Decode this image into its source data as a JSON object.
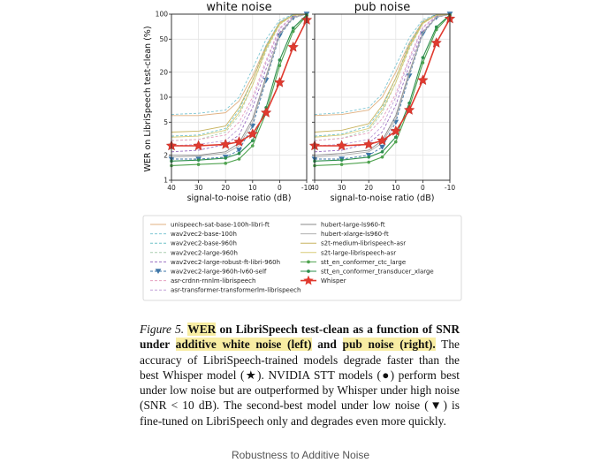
{
  "chart_data": [
    {
      "type": "line",
      "title": "white noise",
      "xlabel": "signal-to-noise ratio (dB)",
      "ylabel": "WER on LibriSpeech test-clean (%)",
      "x": [
        40,
        30,
        20,
        15,
        10,
        5,
        0,
        -5,
        -10
      ],
      "xticks": [
        "40",
        "30",
        "20",
        "10",
        "0",
        "-10"
      ],
      "yticks": [
        "1",
        "2",
        "5",
        "10",
        "20",
        "50",
        "100"
      ],
      "xlim": [
        40,
        -10
      ],
      "ylim": [
        1,
        100
      ],
      "yscale": "log",
      "series": [
        {
          "name": "unispeech-sat-base-100h-libri-ft",
          "color": "#e0b080",
          "values": [
            6,
            6,
            6.5,
            9,
            18,
            42,
            80,
            98,
            100
          ]
        },
        {
          "name": "wav2vec2-base-100h",
          "color": "#7fc7d4",
          "values": [
            6.2,
            6.4,
            7,
            10,
            22,
            50,
            85,
            99,
            100
          ]
        },
        {
          "name": "wav2vec2-base-960h",
          "color": "#6fc2c8",
          "values": [
            3.4,
            3.5,
            4.2,
            7,
            16,
            42,
            80,
            98,
            100
          ]
        },
        {
          "name": "wav2vec2-large-960h",
          "color": "#aacdb0",
          "values": [
            3.0,
            3.1,
            3.8,
            6,
            14,
            36,
            75,
            97,
            100
          ]
        },
        {
          "name": "wav2vec2-large-robust-ft-libri-960h",
          "color": "#9a6fc0",
          "values": [
            2.2,
            2.3,
            2.7,
            3.5,
            7.5,
            22,
            60,
            92,
            100
          ]
        },
        {
          "name": "wav2vec2-large-960h-lv60-self",
          "color": "#3e76a8",
          "values": [
            1.8,
            1.8,
            1.9,
            2.3,
            4.5,
            16,
            55,
            90,
            100
          ]
        },
        {
          "name": "asr-crdnn-rnnlm-librispeech",
          "color": "#e6a0c0",
          "values": [
            3.0,
            3.1,
            3.5,
            5,
            10,
            28,
            68,
            95,
            100
          ]
        },
        {
          "name": "asr-transformer-transformerlm-librispeech",
          "color": "#c0a0d8",
          "values": [
            2.6,
            2.7,
            3.0,
            4.2,
            9,
            26,
            66,
            94,
            100
          ]
        },
        {
          "name": "hubert-large-ls960-ft",
          "color": "#8a8a8a",
          "values": [
            2.0,
            2.0,
            2.2,
            2.8,
            5.5,
            18,
            58,
            91,
            100
          ]
        },
        {
          "name": "hubert-xlarge-ls960-ft",
          "color": "#b0b0b0",
          "values": [
            1.9,
            1.95,
            2.1,
            2.6,
            5,
            17,
            57,
            91,
            100
          ]
        },
        {
          "name": "s2t-medium-librispeech-asr",
          "color": "#c8b460",
          "values": [
            3.8,
            3.9,
            4.5,
            7.5,
            16,
            40,
            78,
            97,
            100
          ]
        },
        {
          "name": "s2t-large-librispeech-asr",
          "color": "#d8cc78",
          "values": [
            3.3,
            3.4,
            4.0,
            6.5,
            14,
            38,
            76,
            97,
            100
          ]
        },
        {
          "name": "stt_en_conformer_ctc_large",
          "color": "#4fa34f",
          "values": [
            1.5,
            1.55,
            1.6,
            1.8,
            2.6,
            6.5,
            24,
            62,
            96
          ]
        },
        {
          "name": "stt_en_conformer_transducer_xlarge",
          "color": "#2e8f4e",
          "values": [
            1.7,
            1.75,
            1.85,
            2.1,
            3.0,
            7.5,
            28,
            68,
            98
          ]
        },
        {
          "name": "Whisper",
          "color": "#e03a2f",
          "values": [
            2.6,
            2.6,
            2.7,
            2.9,
            3.6,
            6.5,
            15,
            40,
            85
          ]
        }
      ]
    },
    {
      "type": "line",
      "title": "pub noise",
      "xlabel": "signal-to-noise ratio (dB)",
      "ylabel": "",
      "x": [
        40,
        30,
        20,
        15,
        10,
        5,
        0,
        -5,
        -10
      ],
      "xticks": [
        "40",
        "30",
        "20",
        "10",
        "0",
        "-10"
      ],
      "yticks": [
        "1",
        "2",
        "5",
        "10",
        "20",
        "50",
        "100"
      ],
      "xlim": [
        40,
        -10
      ],
      "ylim": [
        1,
        100
      ],
      "yscale": "log",
      "series": [
        {
          "name": "unispeech-sat-base-100h-libri-ft",
          "color": "#e0b080",
          "values": [
            6,
            6.2,
            7,
            10,
            20,
            45,
            82,
            98,
            100
          ]
        },
        {
          "name": "wav2vec2-base-100h",
          "color": "#7fc7d4",
          "values": [
            6.2,
            6.5,
            7.5,
            11,
            24,
            52,
            86,
            99,
            100
          ]
        },
        {
          "name": "wav2vec2-base-960h",
          "color": "#6fc2c8",
          "values": [
            3.4,
            3.6,
            4.5,
            7.5,
            17,
            44,
            81,
            98,
            100
          ]
        },
        {
          "name": "wav2vec2-large-960h",
          "color": "#aacdb0",
          "values": [
            3.0,
            3.2,
            4.0,
            6.5,
            15,
            38,
            77,
            97,
            100
          ]
        },
        {
          "name": "wav2vec2-large-robust-ft-libri-960h",
          "color": "#9a6fc0",
          "values": [
            2.2,
            2.3,
            2.8,
            3.8,
            8,
            24,
            62,
            93,
            100
          ]
        },
        {
          "name": "wav2vec2-large-960h-lv60-self",
          "color": "#3e76a8",
          "values": [
            1.8,
            1.8,
            2.0,
            2.5,
            5,
            18,
            58,
            91,
            100
          ]
        },
        {
          "name": "asr-crdnn-rnnlm-librispeech",
          "color": "#e6a0c0",
          "values": [
            3.0,
            3.2,
            3.7,
            5.5,
            11,
            30,
            70,
            95,
            100
          ]
        },
        {
          "name": "asr-transformer-transformerlm-librispeech",
          "color": "#c0a0d8",
          "values": [
            2.6,
            2.7,
            3.1,
            4.5,
            10,
            28,
            68,
            94,
            100
          ]
        },
        {
          "name": "hubert-large-ls960-ft",
          "color": "#8a8a8a",
          "values": [
            2.0,
            2.1,
            2.3,
            3.0,
            6,
            20,
            60,
            92,
            100
          ]
        },
        {
          "name": "hubert-xlarge-ls960-ft",
          "color": "#b0b0b0",
          "values": [
            1.9,
            2.0,
            2.2,
            2.8,
            5.5,
            19,
            59,
            92,
            100
          ]
        },
        {
          "name": "s2t-medium-librispeech-asr",
          "color": "#c8b460",
          "values": [
            3.8,
            4.0,
            4.8,
            8,
            17,
            42,
            79,
            97,
            100
          ]
        },
        {
          "name": "s2t-large-librispeech-asr",
          "color": "#d8cc78",
          "values": [
            3.3,
            3.5,
            4.2,
            7,
            15,
            40,
            77,
            97,
            100
          ]
        },
        {
          "name": "stt_en_conformer_ctc_large",
          "color": "#4fa34f",
          "values": [
            1.5,
            1.55,
            1.65,
            1.9,
            2.9,
            7.5,
            26,
            65,
            97
          ]
        },
        {
          "name": "stt_en_conformer_transducer_xlarge",
          "color": "#2e8f4e",
          "values": [
            1.7,
            1.75,
            1.9,
            2.2,
            3.3,
            8.5,
            30,
            70,
            98
          ]
        },
        {
          "name": "Whisper",
          "color": "#e03a2f",
          "values": [
            2.6,
            2.6,
            2.7,
            3.0,
            3.9,
            7,
            16,
            45,
            88
          ]
        }
      ]
    }
  ],
  "legend": [
    "unispeech-sat-base-100h-libri-ft",
    "wav2vec2-base-100h",
    "wav2vec2-base-960h",
    "wav2vec2-large-960h",
    "wav2vec2-large-robust-ft-libri-960h",
    "wav2vec2-large-960h-lv60-self",
    "asr-crdnn-rnnlm-librispeech",
    "asr-transformer-transformerlm-librispeech",
    "hubert-large-ls960-ft",
    "hubert-xlarge-ls960-ft",
    "s2t-medium-librispeech-asr",
    "s2t-large-librispeech-asr",
    "stt_en_conformer_ctc_large",
    "stt_en_conformer_transducer_xlarge",
    "Whisper"
  ],
  "caption": {
    "fig_label": "Figure 5.",
    "hl1": "WER",
    "part1": " on LibriSpeech test-clean as a function of SNR under ",
    "hl2": "additive white noise (left)",
    "part2": " and ",
    "hl3": "pub noise (right).",
    "body": " The accuracy of LibriSpeech-trained models degrade faster than the best Whisper model (★). NVIDIA STT models (●) perform best under low noise but are outperformed by Whisper under high noise (SNR < 10 dB). The second-best model under low noise (▼) is fine-tuned on LibriSpeech only and degrades even more quickly."
  },
  "footer": "Robustness to Additive Noise"
}
